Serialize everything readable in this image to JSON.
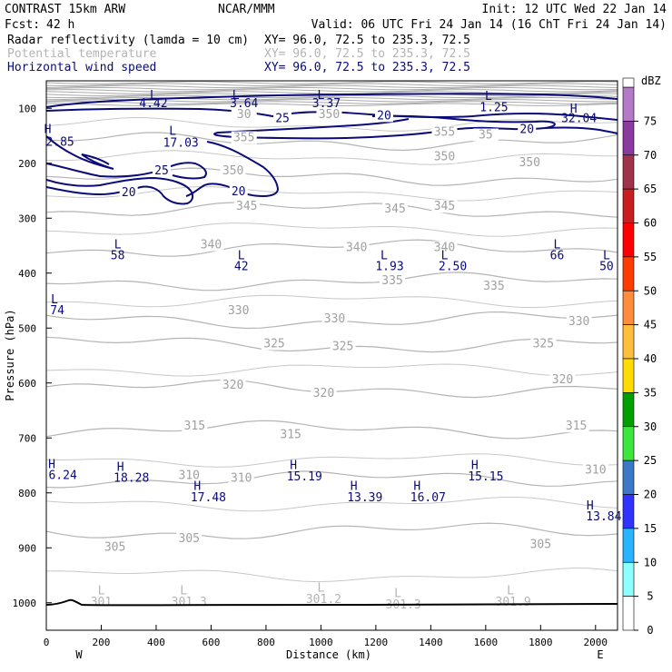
{
  "header": {
    "model": "CONTRAST 15km ARW",
    "org": "NCAR/MMM",
    "init": "Init: 12 UTC Wed 22 Jan 14",
    "fcst_label": "Fcst:",
    "fcst_value": "42 h",
    "valid": "Valid: 06 UTC Fri 24 Jan 14 (16 ChT Fri 24 Jan 14)"
  },
  "fields": [
    {
      "name": "Radar reflectivity (lamda = 10 cm)",
      "xy": "XY=  96.0, 72.5 to 235.3, 72.5",
      "color": "#000000"
    },
    {
      "name": "Potential temperature",
      "xy": "XY=  96.0, 72.5 to 235.3, 72.5",
      "color": "#b4b4b4"
    },
    {
      "name": "Horizontal wind speed",
      "xy": "XY=  96.0, 72.5 to 235.3, 72.5",
      "color": "#0a0a78"
    }
  ],
  "chart_data": {
    "type": "cross-section",
    "xlabel": "Distance (km)",
    "ylabel": "Pressure (hPa)",
    "xlim": [
      0,
      2080
    ],
    "ylim": [
      1050,
      50
    ],
    "xticks": [
      0,
      200,
      400,
      600,
      800,
      1000,
      1200,
      1400,
      1600,
      1800,
      2000
    ],
    "xtick_labels": [
      "0",
      "200",
      "400",
      "600",
      "800",
      "1000",
      "1200",
      "1400",
      "1600",
      "1800",
      "2000"
    ],
    "yticks": [
      100,
      200,
      300,
      400,
      500,
      600,
      700,
      800,
      900,
      1000
    ],
    "ytick_labels": [
      "100",
      "200",
      "300",
      "400",
      "500",
      "600",
      "700",
      "800",
      "900",
      "1000"
    ],
    "west_label": "W",
    "east_label": "E",
    "theta_isentropes": [
      {
        "value": 305,
        "p": 870
      },
      {
        "value": 310,
        "p": 775
      },
      {
        "value": 315,
        "p": 685
      },
      {
        "value": 320,
        "p": 610
      },
      {
        "value": 325,
        "p": 530
      },
      {
        "value": 330,
        "p": 485
      },
      {
        "value": 335,
        "p": 415
      },
      {
        "value": 340,
        "p": 355
      },
      {
        "value": 345,
        "p": 285
      },
      {
        "value": 350,
        "p": 225
      },
      {
        "value": 355,
        "p": 160
      }
    ],
    "theta_labels": [
      {
        "text": "305",
        "x": 250,
        "p": 905
      },
      {
        "text": "305",
        "x": 520,
        "p": 890
      },
      {
        "text": "305",
        "x": 1800,
        "p": 900
      },
      {
        "text": "310",
        "x": 520,
        "p": 775
      },
      {
        "text": "310",
        "x": 710,
        "p": 780
      },
      {
        "text": "310",
        "x": 2000,
        "p": 765
      },
      {
        "text": "315",
        "x": 540,
        "p": 685
      },
      {
        "text": "315",
        "x": 890,
        "p": 700
      },
      {
        "text": "315",
        "x": 1930,
        "p": 685
      },
      {
        "text": "320",
        "x": 680,
        "p": 610
      },
      {
        "text": "320",
        "x": 1010,
        "p": 625
      },
      {
        "text": "320",
        "x": 1880,
        "p": 600
      },
      {
        "text": "325",
        "x": 830,
        "p": 535
      },
      {
        "text": "325",
        "x": 1080,
        "p": 540
      },
      {
        "text": "325",
        "x": 1810,
        "p": 535
      },
      {
        "text": "330",
        "x": 700,
        "p": 475
      },
      {
        "text": "330",
        "x": 1050,
        "p": 490
      },
      {
        "text": "330",
        "x": 1940,
        "p": 495
      },
      {
        "text": "335",
        "x": 1260,
        "p": 420
      },
      {
        "text": "335",
        "x": 1630,
        "p": 430
      },
      {
        "text": "340",
        "x": 600,
        "p": 355
      },
      {
        "text": "340",
        "x": 1130,
        "p": 360
      },
      {
        "text": "340",
        "x": 1450,
        "p": 360
      },
      {
        "text": "345",
        "x": 730,
        "p": 285
      },
      {
        "text": "345",
        "x": 1270,
        "p": 290
      },
      {
        "text": "345",
        "x": 1450,
        "p": 285
      },
      {
        "text": "350",
        "x": 680,
        "p": 220
      },
      {
        "text": "350",
        "x": 1450,
        "p": 195
      },
      {
        "text": "350",
        "x": 1760,
        "p": 205
      },
      {
        "text": "355",
        "x": 720,
        "p": 160
      },
      {
        "text": "355",
        "x": 1450,
        "p": 150
      },
      {
        "text": "35",
        "x": 1600,
        "p": 155
      },
      {
        "text": "30",
        "x": 720,
        "p": 118
      },
      {
        "text": "350",
        "x": 1030,
        "p": 118
      }
    ],
    "wind_labels": [
      {
        "text": "25",
        "x": 860,
        "p": 125
      },
      {
        "text": "20",
        "x": 1230,
        "p": 120
      },
      {
        "text": "20",
        "x": 1750,
        "p": 145
      },
      {
        "text": "25",
        "x": 420,
        "p": 220
      },
      {
        "text": "20",
        "x": 300,
        "p": 260
      },
      {
        "text": "20",
        "x": 700,
        "p": 258
      }
    ],
    "extrema": [
      {
        "kind": "L",
        "value": "4.42",
        "x": 390,
        "p": 83,
        "vx": 390,
        "vp": 98,
        "color": "#0a0a78"
      },
      {
        "kind": "L",
        "value": "3.64",
        "x": 690,
        "p": 83,
        "vx": 720,
        "vp": 98,
        "color": "#0a0a78"
      },
      {
        "kind": "L",
        "value": "3.37",
        "x": 1000,
        "p": 83,
        "vx": 1020,
        "vp": 98,
        "color": "#0a0a78"
      },
      {
        "kind": "L",
        "value": "1.25",
        "x": 1610,
        "p": 85,
        "vx": 1630,
        "vp": 105,
        "color": "#0a0a78"
      },
      {
        "kind": "H",
        "value": "32.04",
        "x": 1920,
        "p": 108,
        "vx": 1940,
        "vp": 125,
        "color": "#0a0a78"
      },
      {
        "kind": "H",
        "value": "2.85",
        "x": 5,
        "p": 145,
        "vx": 50,
        "vp": 168,
        "color": "#0a0a78"
      },
      {
        "kind": "L",
        "value": "17.03",
        "x": 460,
        "p": 148,
        "vx": 490,
        "vp": 170,
        "color": "#0a0a78"
      },
      {
        "kind": "L",
        "value": "58",
        "x": 260,
        "p": 355,
        "vx": 260,
        "vp": 375,
        "color": "#0a0a78"
      },
      {
        "kind": "L",
        "value": "42",
        "x": 710,
        "p": 375,
        "vx": 710,
        "vp": 395,
        "color": "#0a0a78"
      },
      {
        "kind": "L",
        "value": "1.93",
        "x": 1230,
        "p": 375,
        "vx": 1250,
        "vp": 395,
        "color": "#0a0a78"
      },
      {
        "kind": "L",
        "value": "2.50",
        "x": 1450,
        "p": 375,
        "vx": 1480,
        "vp": 395,
        "color": "#0a0a78"
      },
      {
        "kind": "L",
        "value": "66",
        "x": 1860,
        "p": 355,
        "vx": 1860,
        "vp": 375,
        "color": "#0a0a78"
      },
      {
        "kind": "L",
        "value": "50",
        "x": 2040,
        "p": 375,
        "vx": 2040,
        "vp": 395,
        "color": "#0a0a78"
      },
      {
        "kind": "L",
        "value": "74",
        "x": 30,
        "p": 455,
        "vx": 40,
        "vp": 475,
        "color": "#0a0a78"
      },
      {
        "kind": "H",
        "value": "6.24",
        "x": 20,
        "p": 755,
        "vx": 60,
        "vp": 775,
        "color": "#0a0a78"
      },
      {
        "kind": "H",
        "value": "18.28",
        "x": 270,
        "p": 760,
        "vx": 310,
        "vp": 780,
        "color": "#0a0a78"
      },
      {
        "kind": "H",
        "value": "17.48",
        "x": 550,
        "p": 795,
        "vx": 590,
        "vp": 815,
        "color": "#0a0a78"
      },
      {
        "kind": "H",
        "value": "15.19",
        "x": 900,
        "p": 757,
        "vx": 940,
        "vp": 777,
        "color": "#0a0a78"
      },
      {
        "kind": "H",
        "value": "13.39",
        "x": 1120,
        "p": 795,
        "vx": 1160,
        "vp": 815,
        "color": "#0a0a78"
      },
      {
        "kind": "H",
        "value": "16.07",
        "x": 1350,
        "p": 795,
        "vx": 1390,
        "vp": 815,
        "color": "#0a0a78"
      },
      {
        "kind": "H",
        "value": "15.15",
        "x": 1560,
        "p": 757,
        "vx": 1600,
        "vp": 777,
        "color": "#0a0a78"
      },
      {
        "kind": "H",
        "value": "13.84",
        "x": 1980,
        "p": 830,
        "vx": 2030,
        "vp": 850,
        "color": "#0a0a78"
      },
      {
        "kind": "L",
        "value": "301",
        "x": 200,
        "p": 985,
        "vx": 200,
        "vp": 1005,
        "color": "#b4b4b4"
      },
      {
        "kind": "L",
        "value": "301.3",
        "x": 500,
        "p": 985,
        "vx": 520,
        "vp": 1005,
        "color": "#b4b4b4"
      },
      {
        "kind": "L",
        "value": "301.2",
        "x": 1000,
        "p": 980,
        "vx": 1010,
        "vp": 1000,
        "color": "#b4b4b4"
      },
      {
        "kind": "L",
        "value": "301.3",
        "x": 1280,
        "p": 990,
        "vx": 1300,
        "vp": 1010,
        "color": "#b4b4b4"
      },
      {
        "kind": "L",
        "value": "301.9",
        "x": 1690,
        "p": 985,
        "vx": 1700,
        "vp": 1005,
        "color": "#b4b4b4"
      }
    ],
    "colorbar": {
      "unit": "dBZ",
      "levels": [
        75,
        70,
        65,
        60,
        55,
        50,
        45,
        40,
        35,
        30,
        25,
        20,
        15,
        10,
        5,
        0
      ],
      "labels": [
        "75",
        "70",
        "65",
        "60",
        "55",
        "50",
        "45",
        "40",
        "35",
        "30",
        "25",
        "20",
        "15",
        "10",
        "5",
        "0"
      ],
      "colors": [
        "#b47ac8",
        "#8a3aa0",
        "#a0324c",
        "#c81e1e",
        "#ff0000",
        "#ff3c00",
        "#ff8c3c",
        "#ffbe3c",
        "#ffdc00",
        "#00a000",
        "#3ce63c",
        "#3c78c8",
        "#3232ff",
        "#28b4ff",
        "#8cffff",
        "#ffffff"
      ]
    }
  }
}
